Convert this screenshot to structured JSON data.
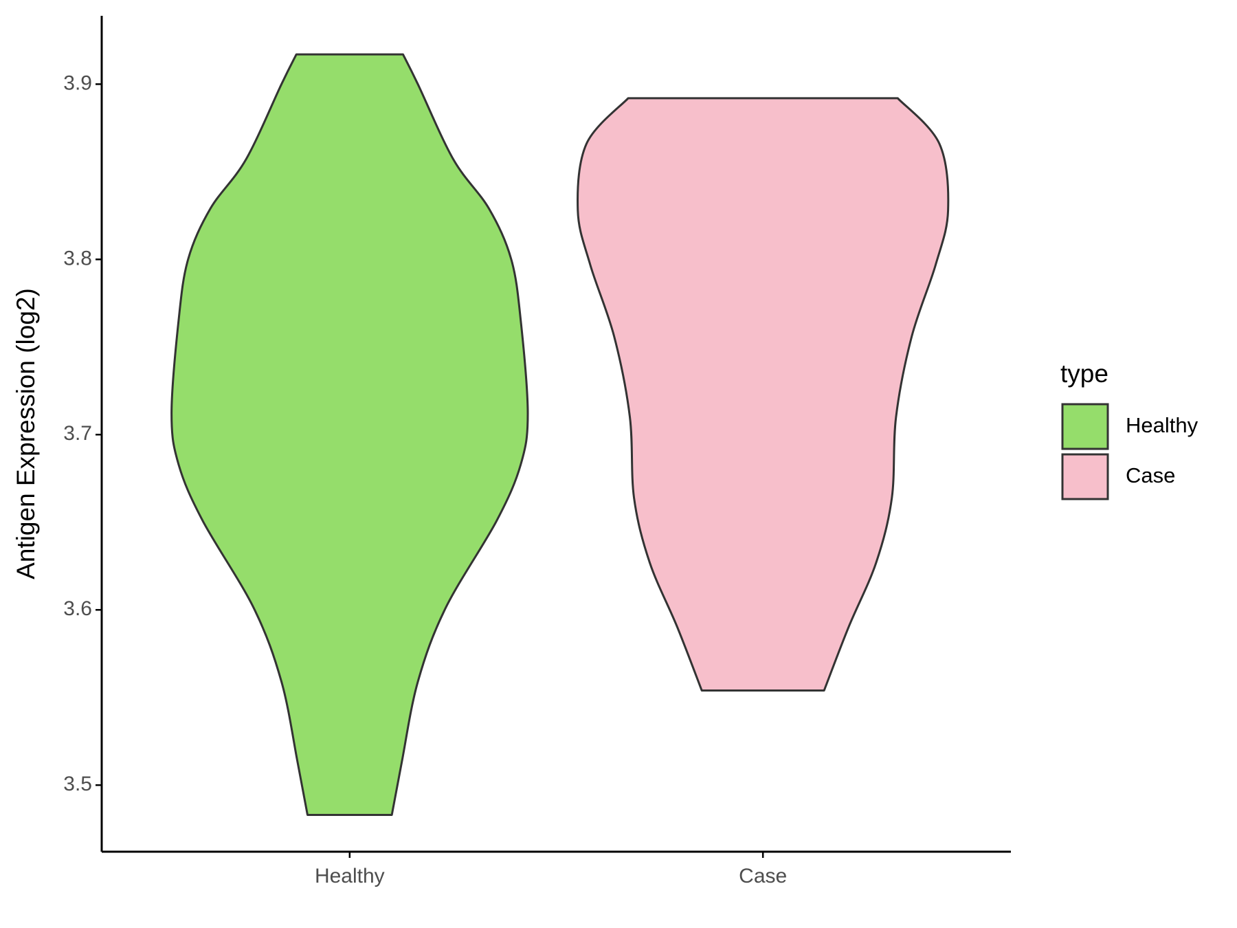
{
  "chart_data": {
    "type": "violin",
    "y_label": "Antigen Expression (log2)",
    "categories": [
      "Healthy",
      "Case"
    ],
    "legend_title": "type",
    "legend_position": "right",
    "ylim": [
      3.462,
      3.939
    ],
    "yticks": [
      3.5,
      3.6,
      3.7,
      3.8,
      3.9
    ],
    "series": [
      {
        "name": "Healthy",
        "color": "#95dd6b",
        "y": [
          3.917,
          3.9,
          3.857,
          3.829,
          3.8,
          3.765,
          3.712,
          3.683,
          3.651,
          3.601,
          3.559,
          3.513,
          3.483
        ],
        "half_width": [
          0.129,
          0.165,
          0.251,
          0.337,
          0.391,
          0.414,
          0.431,
          0.414,
          0.356,
          0.232,
          0.165,
          0.126,
          0.102
        ]
      },
      {
        "name": "Case",
        "color": "#f7bfcb",
        "y": [
          3.892,
          3.866,
          3.828,
          3.797,
          3.756,
          3.71,
          3.664,
          3.627,
          3.59,
          3.554
        ],
        "half_width": [
          0.326,
          0.427,
          0.448,
          0.418,
          0.36,
          0.322,
          0.312,
          0.274,
          0.207,
          0.148
        ]
      }
    ]
  }
}
